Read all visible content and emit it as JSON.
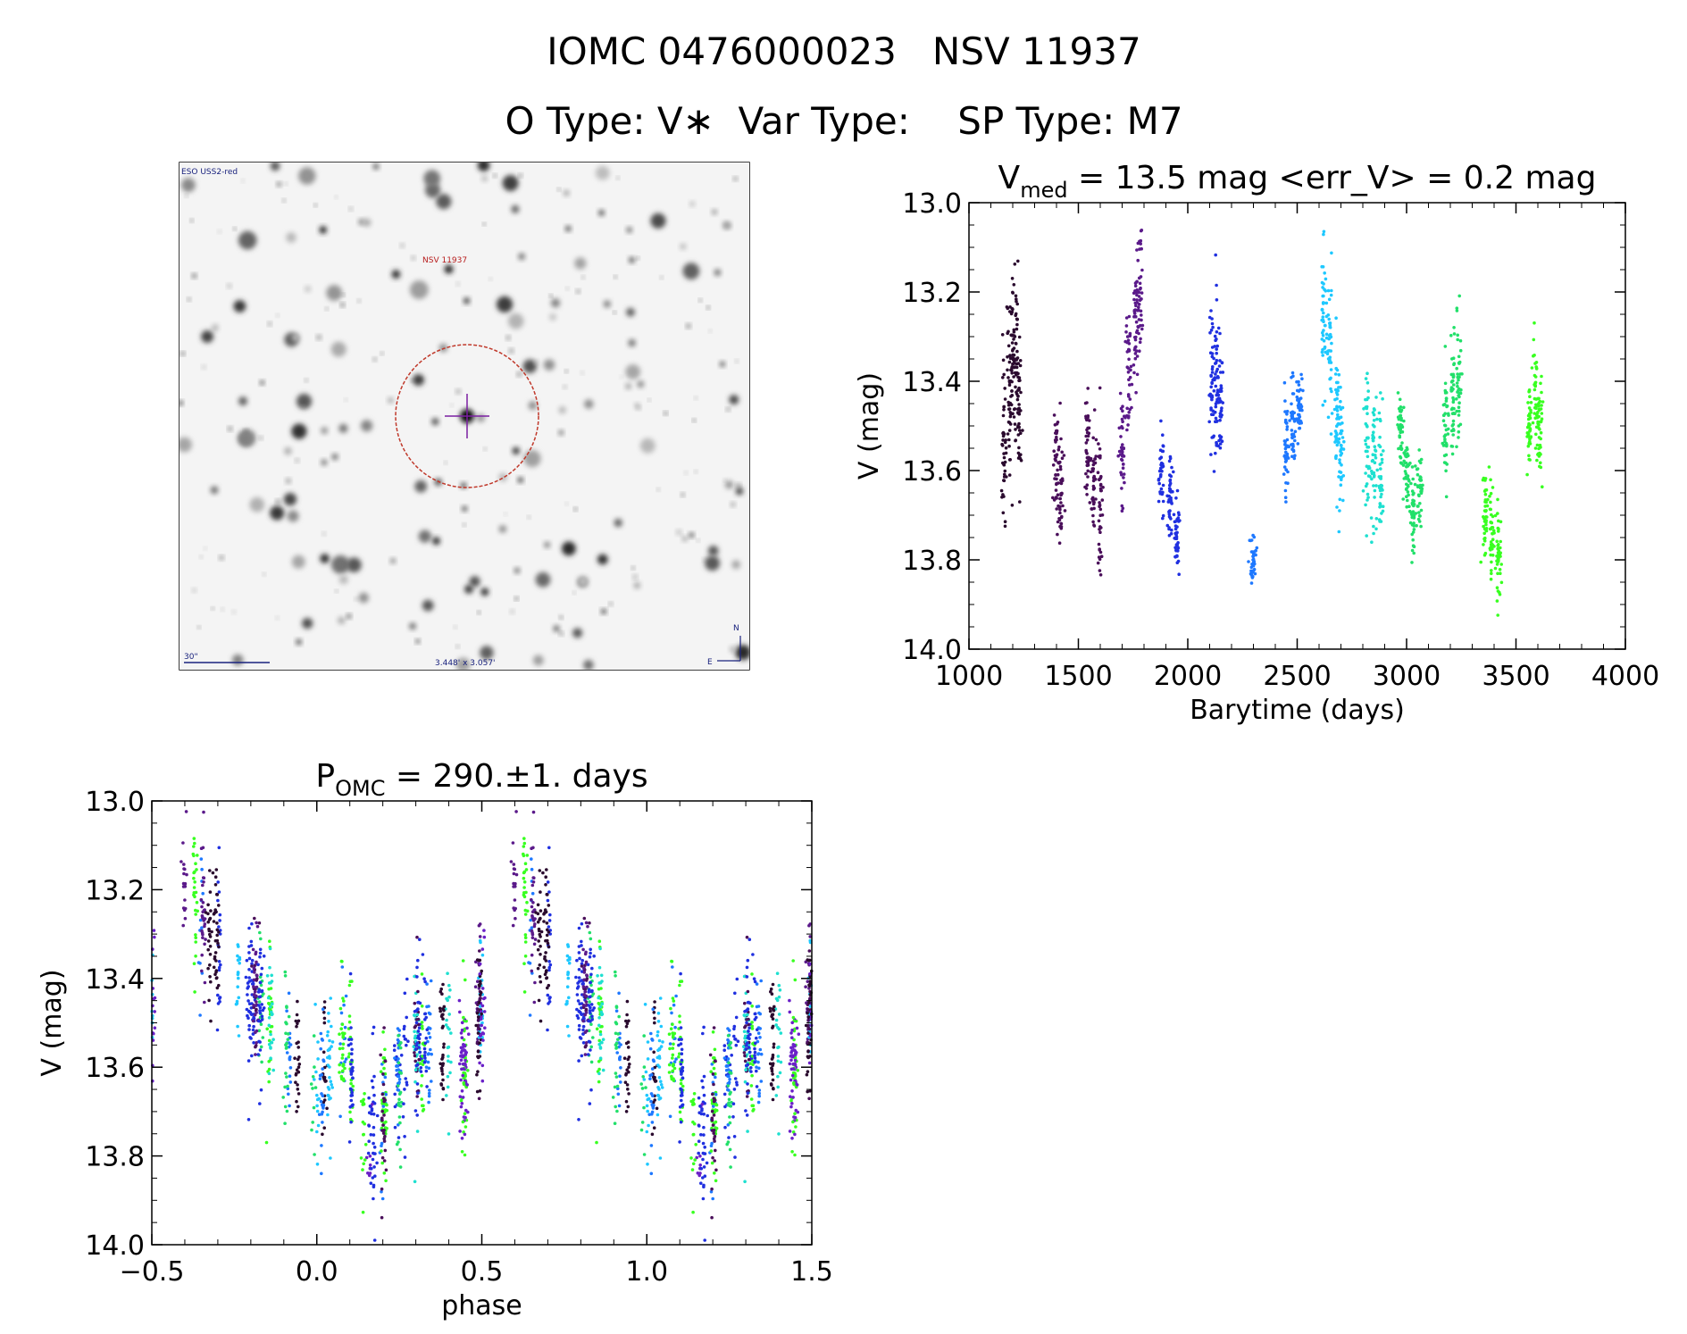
{
  "header": {
    "title": "IOMC 0476000023   NSV 11937",
    "subtitle": "O Type: V∗  Var Type:    SP Type: M7"
  },
  "image_panel": {
    "survey_label": "ESO USS2-red",
    "target_label": "NSV 11937",
    "scale_label": "30\"",
    "fov_label": "3.448' x 3.057'",
    "north_label": "N",
    "east_label": "E"
  },
  "colors": {
    "axis": "#000000",
    "marker_circle": "#c0392b",
    "marker_cross": "#7b1fa2",
    "sky_label": "#1a237e",
    "target_label": "#b71c1c",
    "palette": [
      "#2a0a2e",
      "#4a0f5a",
      "#5b1a8a",
      "#6a20c8",
      "#2030e0",
      "#1e78ff",
      "#1ec8ff",
      "#1ee0d0",
      "#22e06a",
      "#38ff20"
    ]
  },
  "chart_data": [
    {
      "type": "scatter",
      "title_prefix": "V",
      "title_sub": "med",
      "title_rest": " = 13.5 mag <err_V> = 0.2 mag",
      "xlabel": "Barytime (days)",
      "ylabel": "V (mag)",
      "xlim": [
        1000,
        4000
      ],
      "ylim": [
        14.0,
        13.0
      ],
      "xticks": [
        "1000",
        "1500",
        "2000",
        "2500",
        "3000",
        "3500",
        "4000"
      ],
      "yticks": [
        "13.0",
        "13.2",
        "13.4",
        "13.6",
        "13.8",
        "14.0"
      ],
      "series": [
        {
          "color": "#2a0a2e",
          "x": [
            1160,
            1185,
            1200,
            1215,
            1230
          ],
          "y": [
            13.55,
            13.4,
            13.35,
            13.3,
            13.45
          ],
          "spread": [
            0.15,
            0.18,
            0.2,
            0.22,
            0.18
          ]
        },
        {
          "color": "#4a0f5a",
          "x": [
            1400,
            1420,
            1540,
            1570,
            1600
          ],
          "y": [
            13.6,
            13.65,
            13.55,
            13.6,
            13.7
          ],
          "spread": [
            0.12,
            0.1,
            0.12,
            0.15,
            0.2
          ]
        },
        {
          "color": "#5b1a8a",
          "x": [
            1700,
            1730,
            1760,
            1780
          ],
          "y": [
            13.55,
            13.4,
            13.25,
            13.2
          ],
          "spread": [
            0.15,
            0.15,
            0.15,
            0.15
          ]
        },
        {
          "color": "#2030e0",
          "x": [
            1880,
            1920,
            1950,
            2110,
            2130,
            2150
          ],
          "y": [
            13.6,
            13.65,
            13.75,
            13.4,
            13.4,
            13.45
          ],
          "spread": [
            0.1,
            0.1,
            0.08,
            0.15,
            0.18,
            0.12
          ]
        },
        {
          "color": "#1e78ff",
          "x": [
            2300,
            2450,
            2480,
            2510
          ],
          "y": [
            13.8,
            13.55,
            13.5,
            13.45
          ],
          "spread": [
            0.05,
            0.1,
            0.1,
            0.08
          ]
        },
        {
          "color": "#1ec8ff",
          "x": [
            2620,
            2650,
            2680,
            2700
          ],
          "y": [
            13.25,
            13.3,
            13.45,
            13.55
          ],
          "spread": [
            0.15,
            0.15,
            0.18,
            0.15
          ]
        },
        {
          "color": "#1ee0d0",
          "x": [
            2820,
            2850,
            2880
          ],
          "y": [
            13.55,
            13.6,
            13.6
          ],
          "spread": [
            0.15,
            0.18,
            0.15
          ]
        },
        {
          "color": "#22e06a",
          "x": [
            2970,
            3000,
            3030,
            3060,
            3180,
            3210,
            3240
          ],
          "y": [
            13.5,
            13.6,
            13.7,
            13.65,
            13.5,
            13.45,
            13.4
          ],
          "spread": [
            0.08,
            0.08,
            0.1,
            0.08,
            0.15,
            0.18,
            0.15
          ]
        },
        {
          "color": "#38ff20",
          "x": [
            3360,
            3390,
            3420,
            3560,
            3590,
            3610
          ],
          "y": [
            13.7,
            13.75,
            13.8,
            13.5,
            13.45,
            13.5
          ],
          "spread": [
            0.1,
            0.12,
            0.1,
            0.1,
            0.12,
            0.1
          ]
        }
      ]
    },
    {
      "type": "scatter",
      "title_prefix": "P",
      "title_sub": "OMC",
      "title_rest": " = 290.±1. days",
      "xlabel": "phase",
      "ylabel": "V (mag)",
      "xlim": [
        -0.5,
        1.5
      ],
      "ylim": [
        14.0,
        13.0
      ],
      "xticks": [
        "−0.5",
        "0.0",
        "0.5",
        "1.0",
        "1.5"
      ],
      "yticks": [
        "13.0",
        "13.2",
        "13.4",
        "13.6",
        "13.8",
        "14.0"
      ],
      "period_days": 290,
      "phase_curve": {
        "phase": [
          0.0,
          0.08,
          0.15,
          0.22,
          0.3,
          0.38,
          0.45,
          0.52,
          0.6,
          0.68,
          0.75,
          0.82,
          0.9,
          1.0
        ],
        "v": [
          13.65,
          13.55,
          13.75,
          13.7,
          13.55,
          13.55,
          13.6,
          13.4,
          13.2,
          13.3,
          13.4,
          13.45,
          13.55,
          13.65
        ]
      }
    }
  ]
}
